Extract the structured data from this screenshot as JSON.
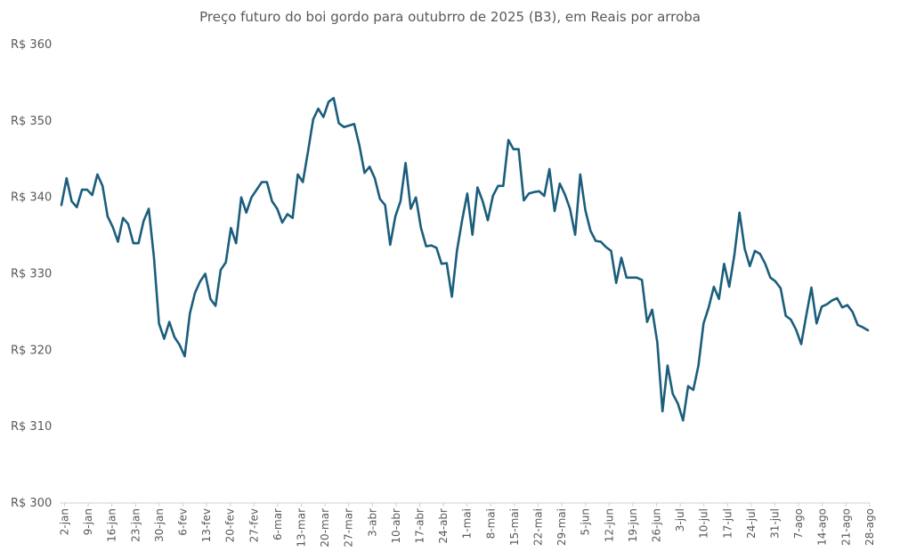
{
  "chart_data": {
    "type": "line",
    "title": "Preço futuro do boi gordo para outubrro de 2025 (B3), em Reais por arroba",
    "xlabel": "",
    "ylabel": "",
    "ylim": [
      300,
      360
    ],
    "y_ticks": [
      300,
      310,
      320,
      330,
      340,
      350,
      360
    ],
    "y_tick_labels": [
      "R$ 300",
      "R$ 310",
      "R$ 320",
      "R$ 330",
      "R$ 340",
      "R$ 350",
      "R$ 360"
    ],
    "x_ticks": [
      "2-jan",
      "9-jan",
      "16-jan",
      "23-jan",
      "30-jan",
      "6-fev",
      "13-fev",
      "20-fev",
      "27-fev",
      "6-mar",
      "13-mar",
      "20-mar",
      "27-mar",
      "3-abr",
      "10-abr",
      "17-abr",
      "24-abr",
      "1-mai",
      "8-mai",
      "15-mai",
      "22-mai",
      "29-mai",
      "5-jun",
      "12-jun",
      "19-jun",
      "26-jun",
      "3-jul",
      "10-jul",
      "17-jul",
      "24-jul",
      "31-jul",
      "7-ago",
      "14-ago",
      "21-ago",
      "28-ago"
    ],
    "grid": false,
    "legend": "none",
    "line_color": "#1b5e7c",
    "series": [
      {
        "values": [
          339,
          342.5,
          339.5,
          338.7,
          341,
          341,
          340.3,
          343,
          341.5,
          337.5,
          336.1,
          334.2,
          337.3,
          336.5,
          334,
          334,
          336.9,
          338.5,
          332.2,
          323.5,
          321.5,
          323.7,
          321.7,
          320.7,
          319.2,
          324.8,
          327.5,
          329,
          330,
          326.7,
          325.8,
          330.5,
          331.5,
          336,
          334,
          340,
          338,
          340,
          341,
          342,
          342,
          339.5,
          338.5,
          336.7,
          337.8,
          337.3,
          343,
          342,
          346,
          350.2,
          351.6,
          350.5,
          352.5,
          353,
          349.7,
          349.2,
          349.4,
          349.6,
          346.8,
          343.2,
          344,
          342.5,
          339.8,
          339,
          333.8,
          337.5,
          339.5,
          344.5,
          338.5,
          340,
          336,
          333.6,
          333.7,
          333.4,
          331.3,
          331.4,
          327,
          333,
          337,
          340.5,
          335.1,
          341.3,
          339.5,
          337,
          340.2,
          341.5,
          341.5,
          347.5,
          346.3,
          346.3,
          339.6,
          340.5,
          340.7,
          340.8,
          340.2,
          343.7,
          338.2,
          341.8,
          340.4,
          338.5,
          335.1,
          343,
          338.3,
          335.6,
          334.3,
          334.2,
          333.5,
          333,
          328.8,
          332.1,
          329.5,
          329.5,
          329.5,
          329.2,
          323.7,
          325.3,
          321,
          312,
          318,
          314.3,
          313,
          310.8,
          315.3,
          314.8,
          318,
          323.5,
          325.6,
          328.3,
          326.7,
          331.3,
          328.3,
          332.5,
          338,
          333.3,
          331,
          333,
          332.6,
          331.3,
          329.5,
          329,
          328.1,
          324.5,
          324,
          322.7,
          320.8,
          324.6,
          328.2,
          323.5,
          325.7,
          326,
          326.5,
          326.8,
          325.6,
          325.9,
          325,
          323.3,
          323,
          322.6
        ]
      }
    ]
  }
}
